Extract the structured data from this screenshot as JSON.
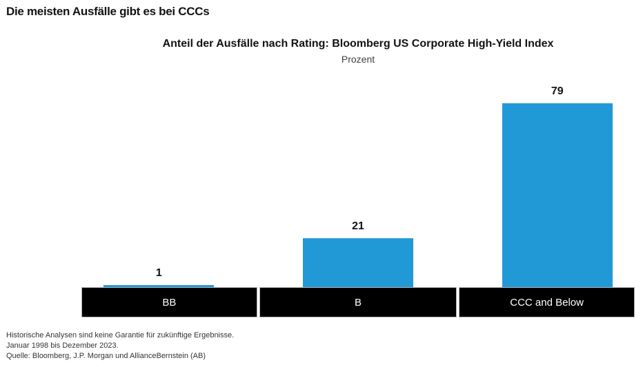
{
  "page": {
    "title": "Die meisten Ausfälle gibt es bei CCCs"
  },
  "chart": {
    "title": "Anteil der Ausfälle nach Rating: Bloomberg US Corporate High-Yield Index",
    "subtitle": "Prozent"
  },
  "chart_data": {
    "type": "bar",
    "title": "Anteil der Ausfälle nach Rating: Bloomberg US Corporate High-Yield Index",
    "subtitle": "Prozent",
    "categories": [
      "BB",
      "B",
      "CCC and Below"
    ],
    "values": [
      1,
      21,
      79
    ],
    "value_labels": [
      "1",
      "21",
      "79"
    ],
    "xlabel": "",
    "ylabel": "Prozent",
    "ylim": [
      0,
      80
    ],
    "grid": false,
    "legend": "none",
    "bar_color": "#2199d6",
    "axis_band_bg": "#000000",
    "axis_band_text_color": "#ffffff"
  },
  "footer": {
    "lines": [
      "Historische Analysen sind keine Garantie für zukünftige Ergebnisse.",
      "Januar 1998 bis Dezember 2023.",
      "Quelle: Bloomberg, J.P. Morgan und AllianceBernstein (AB)"
    ]
  }
}
